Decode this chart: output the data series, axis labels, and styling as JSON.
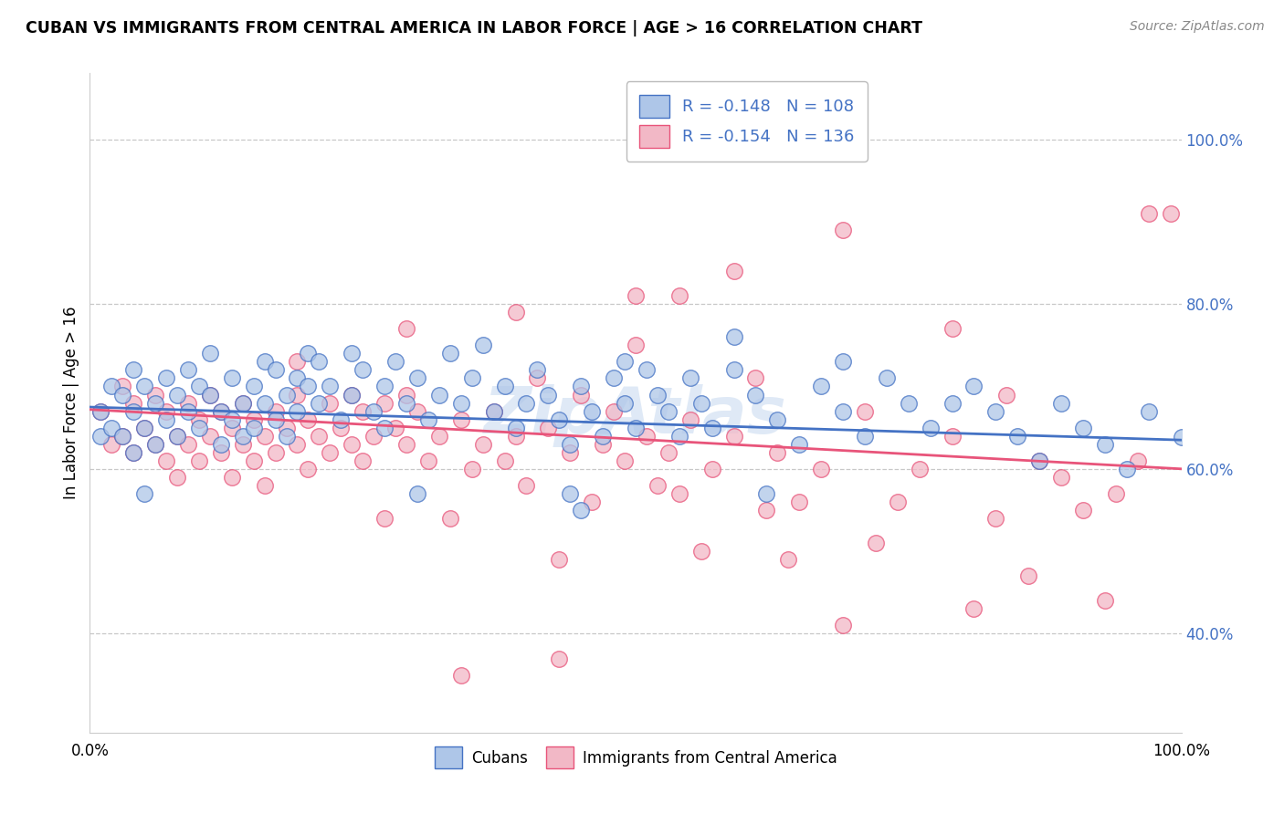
{
  "title": "CUBAN VS IMMIGRANTS FROM CENTRAL AMERICA IN LABOR FORCE | AGE > 16 CORRELATION CHART",
  "source": "Source: ZipAtlas.com",
  "ylabel": "In Labor Force | Age > 16",
  "color_blue": "#aec6e8",
  "color_pink": "#f2b8c6",
  "line_blue": "#4472c4",
  "line_pink": "#e8547a",
  "watermark": "ZipAtlas",
  "blue_line": [
    0.0,
    1.0,
    0.675,
    0.635
  ],
  "pink_line": [
    0.0,
    1.0,
    0.672,
    0.6
  ],
  "ytick_vals": [
    0.4,
    0.6,
    0.8,
    1.0
  ],
  "ytick_labels": [
    "40.0%",
    "60.0%",
    "80.0%",
    "100.0%"
  ],
  "ylim": [
    0.28,
    1.08
  ],
  "xlim": [
    0.0,
    1.0
  ],
  "blue_scatter": [
    [
      0.01,
      0.67
    ],
    [
      0.01,
      0.64
    ],
    [
      0.02,
      0.7
    ],
    [
      0.02,
      0.65
    ],
    [
      0.03,
      0.69
    ],
    [
      0.03,
      0.64
    ],
    [
      0.04,
      0.72
    ],
    [
      0.04,
      0.67
    ],
    [
      0.04,
      0.62
    ],
    [
      0.05,
      0.7
    ],
    [
      0.05,
      0.65
    ],
    [
      0.06,
      0.68
    ],
    [
      0.06,
      0.63
    ],
    [
      0.07,
      0.71
    ],
    [
      0.07,
      0.66
    ],
    [
      0.08,
      0.69
    ],
    [
      0.08,
      0.64
    ],
    [
      0.09,
      0.72
    ],
    [
      0.09,
      0.67
    ],
    [
      0.1,
      0.7
    ],
    [
      0.1,
      0.65
    ],
    [
      0.11,
      0.74
    ],
    [
      0.11,
      0.69
    ],
    [
      0.12,
      0.67
    ],
    [
      0.12,
      0.63
    ],
    [
      0.13,
      0.71
    ],
    [
      0.13,
      0.66
    ],
    [
      0.14,
      0.68
    ],
    [
      0.14,
      0.64
    ],
    [
      0.15,
      0.7
    ],
    [
      0.15,
      0.65
    ],
    [
      0.16,
      0.73
    ],
    [
      0.16,
      0.68
    ],
    [
      0.17,
      0.66
    ],
    [
      0.17,
      0.72
    ],
    [
      0.18,
      0.69
    ],
    [
      0.18,
      0.64
    ],
    [
      0.19,
      0.71
    ],
    [
      0.19,
      0.67
    ],
    [
      0.2,
      0.74
    ],
    [
      0.2,
      0.7
    ],
    [
      0.21,
      0.73
    ],
    [
      0.21,
      0.68
    ],
    [
      0.22,
      0.7
    ],
    [
      0.23,
      0.66
    ],
    [
      0.24,
      0.74
    ],
    [
      0.24,
      0.69
    ],
    [
      0.25,
      0.72
    ],
    [
      0.26,
      0.67
    ],
    [
      0.27,
      0.7
    ],
    [
      0.27,
      0.65
    ],
    [
      0.28,
      0.73
    ],
    [
      0.29,
      0.68
    ],
    [
      0.3,
      0.71
    ],
    [
      0.31,
      0.66
    ],
    [
      0.32,
      0.69
    ],
    [
      0.33,
      0.74
    ],
    [
      0.34,
      0.68
    ],
    [
      0.35,
      0.71
    ],
    [
      0.36,
      0.75
    ],
    [
      0.37,
      0.67
    ],
    [
      0.38,
      0.7
    ],
    [
      0.39,
      0.65
    ],
    [
      0.4,
      0.68
    ],
    [
      0.41,
      0.72
    ],
    [
      0.42,
      0.69
    ],
    [
      0.43,
      0.66
    ],
    [
      0.44,
      0.63
    ],
    [
      0.44,
      0.57
    ],
    [
      0.45,
      0.7
    ],
    [
      0.46,
      0.67
    ],
    [
      0.47,
      0.64
    ],
    [
      0.48,
      0.71
    ],
    [
      0.49,
      0.68
    ],
    [
      0.5,
      0.65
    ],
    [
      0.51,
      0.72
    ],
    [
      0.52,
      0.69
    ],
    [
      0.53,
      0.67
    ],
    [
      0.54,
      0.64
    ],
    [
      0.55,
      0.71
    ],
    [
      0.56,
      0.68
    ],
    [
      0.57,
      0.65
    ],
    [
      0.59,
      0.72
    ],
    [
      0.61,
      0.69
    ],
    [
      0.63,
      0.66
    ],
    [
      0.65,
      0.63
    ],
    [
      0.67,
      0.7
    ],
    [
      0.69,
      0.67
    ],
    [
      0.71,
      0.64
    ],
    [
      0.73,
      0.71
    ],
    [
      0.75,
      0.68
    ],
    [
      0.77,
      0.65
    ],
    [
      0.79,
      0.68
    ],
    [
      0.81,
      0.7
    ],
    [
      0.83,
      0.67
    ],
    [
      0.85,
      0.64
    ],
    [
      0.87,
      0.61
    ],
    [
      0.89,
      0.68
    ],
    [
      0.91,
      0.65
    ],
    [
      0.93,
      0.63
    ],
    [
      0.95,
      0.6
    ],
    [
      0.97,
      0.67
    ],
    [
      1.0,
      0.638
    ],
    [
      0.49,
      0.73
    ],
    [
      0.59,
      0.76
    ],
    [
      0.69,
      0.73
    ],
    [
      0.05,
      0.57
    ],
    [
      0.3,
      0.57
    ],
    [
      0.45,
      0.55
    ],
    [
      0.62,
      0.57
    ]
  ],
  "pink_scatter": [
    [
      0.01,
      0.67
    ],
    [
      0.02,
      0.63
    ],
    [
      0.03,
      0.7
    ],
    [
      0.03,
      0.64
    ],
    [
      0.04,
      0.68
    ],
    [
      0.04,
      0.62
    ],
    [
      0.05,
      0.65
    ],
    [
      0.06,
      0.69
    ],
    [
      0.06,
      0.63
    ],
    [
      0.07,
      0.67
    ],
    [
      0.07,
      0.61
    ],
    [
      0.08,
      0.64
    ],
    [
      0.08,
      0.59
    ],
    [
      0.09,
      0.68
    ],
    [
      0.09,
      0.63
    ],
    [
      0.1,
      0.66
    ],
    [
      0.1,
      0.61
    ],
    [
      0.11,
      0.69
    ],
    [
      0.11,
      0.64
    ],
    [
      0.12,
      0.67
    ],
    [
      0.12,
      0.62
    ],
    [
      0.13,
      0.65
    ],
    [
      0.13,
      0.59
    ],
    [
      0.14,
      0.68
    ],
    [
      0.14,
      0.63
    ],
    [
      0.15,
      0.66
    ],
    [
      0.15,
      0.61
    ],
    [
      0.16,
      0.64
    ],
    [
      0.16,
      0.58
    ],
    [
      0.17,
      0.67
    ],
    [
      0.17,
      0.62
    ],
    [
      0.18,
      0.65
    ],
    [
      0.19,
      0.69
    ],
    [
      0.19,
      0.63
    ],
    [
      0.2,
      0.66
    ],
    [
      0.2,
      0.6
    ],
    [
      0.21,
      0.64
    ],
    [
      0.22,
      0.68
    ],
    [
      0.22,
      0.62
    ],
    [
      0.23,
      0.65
    ],
    [
      0.24,
      0.69
    ],
    [
      0.24,
      0.63
    ],
    [
      0.25,
      0.67
    ],
    [
      0.25,
      0.61
    ],
    [
      0.26,
      0.64
    ],
    [
      0.27,
      0.68
    ],
    [
      0.27,
      0.54
    ],
    [
      0.28,
      0.65
    ],
    [
      0.29,
      0.69
    ],
    [
      0.29,
      0.63
    ],
    [
      0.3,
      0.67
    ],
    [
      0.31,
      0.61
    ],
    [
      0.32,
      0.64
    ],
    [
      0.33,
      0.54
    ],
    [
      0.34,
      0.66
    ],
    [
      0.35,
      0.6
    ],
    [
      0.36,
      0.63
    ],
    [
      0.37,
      0.67
    ],
    [
      0.38,
      0.61
    ],
    [
      0.39,
      0.64
    ],
    [
      0.4,
      0.58
    ],
    [
      0.41,
      0.71
    ],
    [
      0.42,
      0.65
    ],
    [
      0.43,
      0.49
    ],
    [
      0.44,
      0.62
    ],
    [
      0.45,
      0.69
    ],
    [
      0.46,
      0.56
    ],
    [
      0.47,
      0.63
    ],
    [
      0.48,
      0.67
    ],
    [
      0.49,
      0.61
    ],
    [
      0.5,
      0.81
    ],
    [
      0.5,
      0.75
    ],
    [
      0.51,
      0.64
    ],
    [
      0.52,
      0.58
    ],
    [
      0.53,
      0.62
    ],
    [
      0.54,
      0.81
    ],
    [
      0.55,
      0.66
    ],
    [
      0.56,
      0.5
    ],
    [
      0.57,
      0.6
    ],
    [
      0.59,
      0.64
    ],
    [
      0.61,
      0.71
    ],
    [
      0.62,
      0.55
    ],
    [
      0.63,
      0.62
    ],
    [
      0.65,
      0.56
    ],
    [
      0.67,
      0.6
    ],
    [
      0.69,
      0.89
    ],
    [
      0.71,
      0.67
    ],
    [
      0.72,
      0.51
    ],
    [
      0.74,
      0.56
    ],
    [
      0.76,
      0.6
    ],
    [
      0.79,
      0.64
    ],
    [
      0.81,
      0.43
    ],
    [
      0.83,
      0.54
    ],
    [
      0.84,
      0.69
    ],
    [
      0.86,
      0.47
    ],
    [
      0.87,
      0.61
    ],
    [
      0.89,
      0.59
    ],
    [
      0.91,
      0.55
    ],
    [
      0.93,
      0.44
    ],
    [
      0.94,
      0.57
    ],
    [
      0.96,
      0.61
    ],
    [
      0.97,
      0.91
    ],
    [
      0.99,
      0.91
    ],
    [
      0.19,
      0.73
    ],
    [
      0.29,
      0.77
    ],
    [
      0.39,
      0.79
    ],
    [
      0.59,
      0.84
    ],
    [
      0.79,
      0.77
    ],
    [
      0.34,
      0.35
    ],
    [
      0.43,
      0.37
    ],
    [
      0.54,
      0.57
    ],
    [
      0.64,
      0.49
    ],
    [
      0.69,
      0.41
    ]
  ]
}
